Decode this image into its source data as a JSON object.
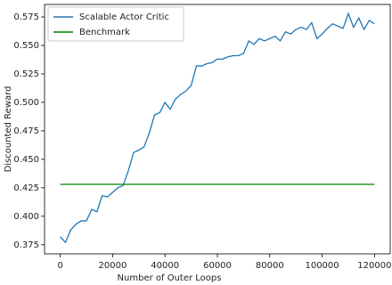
{
  "chart_data": {
    "type": "line",
    "x_label": "Number of Outer Loops",
    "y_label": "Discounted Reward",
    "x": [
      0,
      2000,
      4000,
      6000,
      8000,
      10000,
      12000,
      14000,
      16000,
      18000,
      20000,
      22000,
      24000,
      26000,
      28000,
      30000,
      32000,
      34000,
      36000,
      38000,
      40000,
      42000,
      44000,
      46000,
      48000,
      50000,
      52000,
      54000,
      56000,
      58000,
      60000,
      62000,
      64000,
      66000,
      68000,
      70000,
      72000,
      74000,
      76000,
      78000,
      80000,
      82000,
      84000,
      86000,
      88000,
      90000,
      92000,
      94000,
      96000,
      98000,
      100000,
      102000,
      104000,
      106000,
      108000,
      110000,
      112000,
      114000,
      116000,
      118000,
      120000
    ],
    "series": [
      {
        "name": "Scalable Actor Critic",
        "color": "#1f77b4",
        "values": [
          0.382,
          0.377,
          0.388,
          0.393,
          0.396,
          0.396,
          0.406,
          0.404,
          0.418,
          0.417,
          0.421,
          0.425,
          0.427,
          0.44,
          0.456,
          0.458,
          0.461,
          0.473,
          0.489,
          0.491,
          0.5,
          0.494,
          0.503,
          0.507,
          0.51,
          0.515,
          0.532,
          0.532,
          0.534,
          0.535,
          0.538,
          0.538,
          0.54,
          0.541,
          0.541,
          0.543,
          0.554,
          0.551,
          0.556,
          0.554,
          0.556,
          0.558,
          0.554,
          0.562,
          0.56,
          0.564,
          0.566,
          0.564,
          0.57,
          0.556,
          0.56,
          0.565,
          0.569,
          0.567,
          0.565,
          0.578,
          0.566,
          0.574,
          0.564,
          0.572,
          0.569
        ]
      },
      {
        "name": "Benchmark",
        "color": "#008000",
        "x": [
          0,
          120000
        ],
        "values": [
          0.428,
          0.428
        ]
      }
    ],
    "xlim": [
      -6000,
      126000
    ],
    "ylim": [
      0.367,
      0.586
    ],
    "xticks": [
      0,
      20000,
      40000,
      60000,
      80000,
      100000,
      120000
    ],
    "yticks": [
      0.375,
      {
        "value": 0.4,
        "label": "0.400"
      },
      0.425,
      {
        "value": 0.45,
        "label": "0.450"
      },
      0.475,
      {
        "value": 0.5,
        "label": "0.500"
      },
      0.525,
      {
        "value": 0.55,
        "label": "0.550"
      },
      0.575
    ],
    "legend": "upper left"
  }
}
